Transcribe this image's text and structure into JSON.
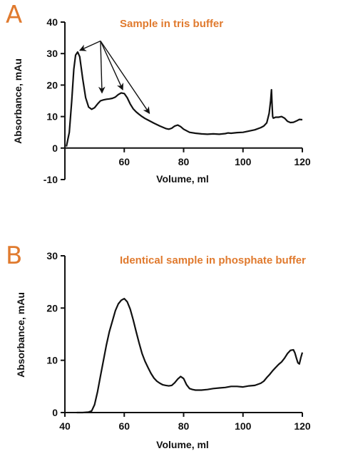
{
  "colors": {
    "accent": "#E07A2E",
    "ink": "#111111"
  },
  "chart_data": [
    {
      "type": "line",
      "panel_label": "A",
      "annotation": "Sample in tris buffer",
      "xlabel": "Volume, ml",
      "ylabel": "Absorbance, mAu",
      "xlim": [
        40,
        120
      ],
      "ylim": [
        -10,
        40
      ],
      "xticks": [
        60,
        80,
        100,
        120
      ],
      "yticks": [
        -10,
        0,
        10,
        20,
        30,
        40
      ],
      "series": [
        {
          "x": [
            40.5,
            41.5,
            42.3,
            43.0,
            43.6,
            44.3,
            45.0,
            46.0,
            47.0,
            48.0,
            49.0,
            50.0,
            51.0,
            52.0,
            53.0,
            54.0,
            55.0,
            56.0,
            57.0,
            58.0,
            59.0,
            60.0,
            61.0,
            62.0,
            63.0,
            64.0,
            65.0,
            66.0,
            67.0,
            68.0,
            70.0,
            72.0,
            74.0,
            75.0,
            76.0,
            77.0,
            78.0,
            79.0,
            80.0,
            82.0,
            84.0,
            86.0,
            88.0,
            90.0,
            92.0,
            94.0,
            95.0,
            96.0,
            98.0,
            100.0,
            102.0,
            104.0,
            106.0,
            107.0,
            108.0,
            108.8,
            109.3,
            109.6,
            109.8,
            110.0,
            110.2,
            110.5,
            111.0,
            112.0,
            113.0,
            114.0,
            115.0,
            116.0,
            117.0,
            118.0,
            119.0,
            120.0
          ],
          "y": [
            0.5,
            5,
            15,
            25,
            29.5,
            30.5,
            29,
            22,
            16,
            13,
            12.3,
            12.8,
            14,
            15,
            15.3,
            15.5,
            15.6,
            15.8,
            16.2,
            17,
            17.5,
            17.3,
            16,
            14,
            12.5,
            11.5,
            10.7,
            10,
            9.4,
            8.9,
            7.9,
            7,
            6.2,
            6,
            6.3,
            7,
            7.3,
            6.8,
            6,
            5,
            4.7,
            4.5,
            4.4,
            4.5,
            4.4,
            4.6,
            4.8,
            4.7,
            4.9,
            5,
            5.4,
            5.8,
            6.5,
            7,
            8,
            11,
            15,
            18.5,
            14,
            10,
            9.5,
            9.6,
            9.8,
            9.8,
            10,
            9.5,
            8.5,
            8.1,
            8.2,
            8.6,
            9.1,
            9
          ]
        }
      ],
      "arrows": [
        {
          "from": [
            52,
            34
          ],
          "to": [
            45,
            31
          ]
        },
        {
          "from": [
            52,
            34
          ],
          "to": [
            52.5,
            17.5
          ]
        },
        {
          "from": [
            52,
            34
          ],
          "to": [
            59.5,
            18.5
          ]
        },
        {
          "from": [
            52,
            34
          ],
          "to": [
            68.5,
            11
          ]
        }
      ]
    },
    {
      "type": "line",
      "panel_label": "B",
      "annotation": "Identical sample in phosphate buffer",
      "xlabel": "Volume, ml",
      "ylabel": "Absorbance, mAu",
      "xlim": [
        40,
        120
      ],
      "ylim": [
        0,
        30
      ],
      "xticks": [
        40,
        60,
        80,
        100,
        120
      ],
      "yticks": [
        0,
        10,
        20,
        30
      ],
      "series": [
        {
          "x": [
            44.0,
            46.0,
            48.0,
            49.0,
            50.0,
            51.0,
            52.0,
            53.0,
            54.0,
            55.0,
            56.0,
            57.0,
            58.0,
            59.0,
            60.0,
            61.0,
            62.0,
            63.0,
            64.0,
            65.0,
            66.0,
            67.0,
            68.0,
            69.0,
            70.0,
            71.0,
            72.0,
            73.0,
            74.0,
            75.0,
            76.0,
            77.0,
            78.0,
            79.0,
            80.0,
            81.0,
            82.0,
            83.0,
            84.0,
            86.0,
            88.0,
            90.0,
            92.0,
            94.0,
            96.0,
            98.0,
            100.0,
            102.0,
            104.0,
            106.0,
            107.0,
            108.0,
            109.0,
            110.0,
            111.0,
            112.0,
            113.0,
            114.0,
            115.0,
            116.0,
            117.0,
            117.5,
            118.0,
            118.5,
            119.0,
            119.5,
            120.0
          ],
          "y": [
            0,
            0,
            0.1,
            0.3,
            1.5,
            4,
            7,
            10,
            13,
            15.5,
            17.5,
            19.5,
            20.8,
            21.5,
            21.8,
            21.2,
            19.8,
            17.8,
            15.5,
            13.3,
            11.3,
            9.8,
            8.6,
            7.5,
            6.6,
            6,
            5.6,
            5.3,
            5.2,
            5.1,
            5.2,
            5.7,
            6.4,
            6.9,
            6.5,
            5.3,
            4.6,
            4.4,
            4.3,
            4.3,
            4.4,
            4.6,
            4.7,
            4.8,
            5,
            5,
            4.9,
            5.1,
            5.2,
            5.6,
            6,
            6.7,
            7.3,
            8,
            8.6,
            9.2,
            9.7,
            10.4,
            11.3,
            11.9,
            12,
            11.4,
            10.4,
            9.5,
            9.3,
            10.5,
            11.5
          ]
        }
      ]
    }
  ]
}
